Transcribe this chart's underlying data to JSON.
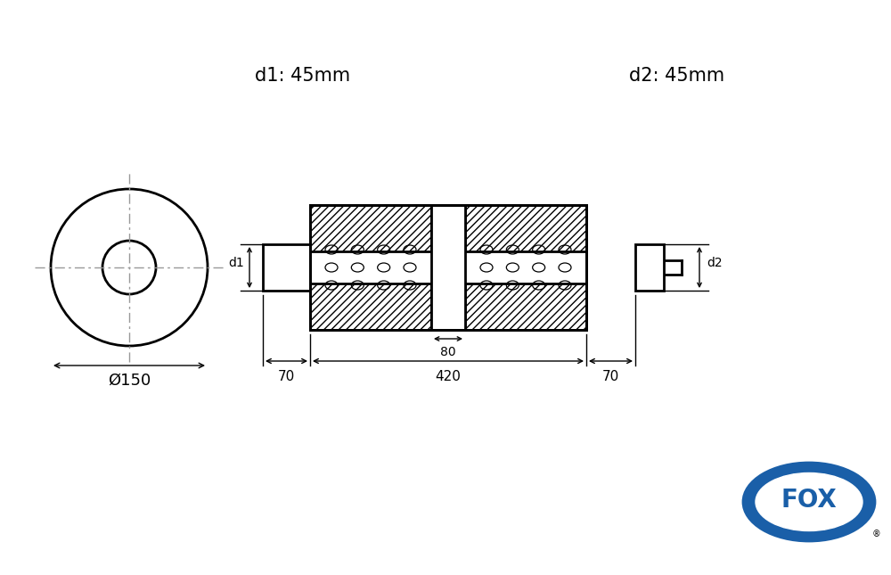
{
  "d1_label": "d1: 45mm",
  "d2_label": "d2: 45mm",
  "diameter_label": "Ø150",
  "dim_420": "420",
  "dim_80": "80",
  "dim_70_left": "70",
  "dim_70_right": "70",
  "d1_arrow": "d1",
  "d2_arrow": "d2",
  "bg_color": "#ffffff",
  "line_color": "#000000",
  "fox_blue": "#1a5fa8",
  "fox_label": "FOX"
}
